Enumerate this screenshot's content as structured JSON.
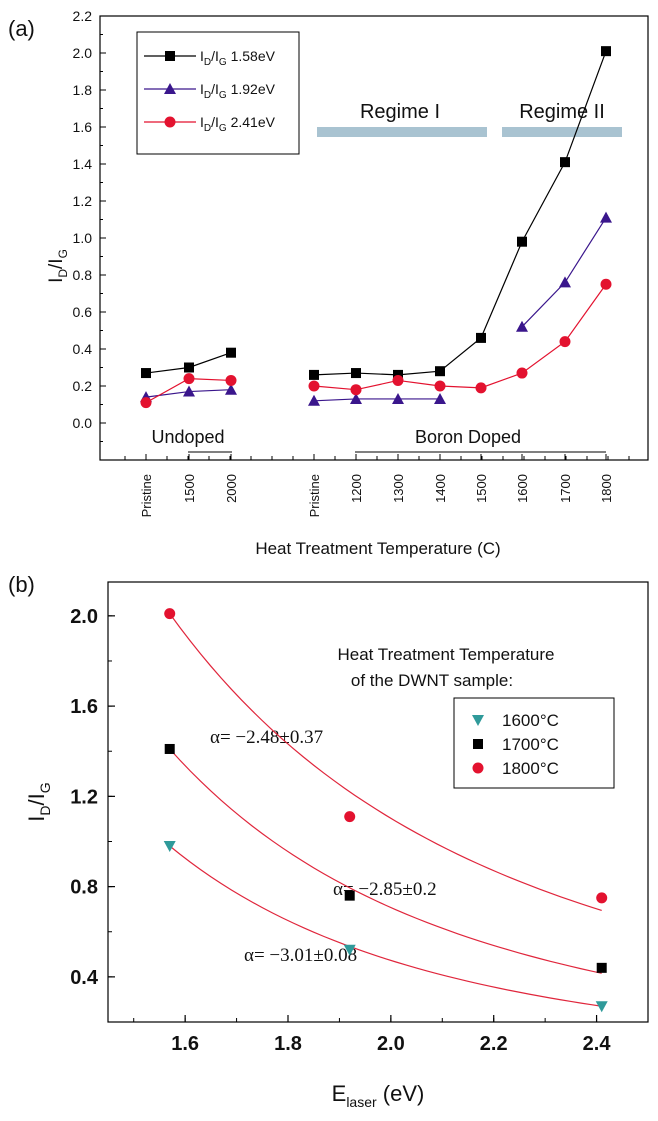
{
  "colors": {
    "s158": "#000000",
    "s192": "#3a168c",
    "s241": "#e3122f",
    "fit": "#e0263c",
    "regime": "#a9c3d1",
    "teal": "#2f9a9a"
  },
  "panel_a": {
    "label": "(a)",
    "ylabel_main": "I",
    "ylabel_sub1": "D",
    "ylabel_mid": "/I",
    "ylabel_sub2": "G",
    "xlabel": "Heat Treatment Temperature (C)",
    "regime1": "Regime I",
    "regime2": "Regime II",
    "undoped": "Undoped",
    "boron": "Boron Doped",
    "legend": [
      {
        "pre": "I",
        "sub1": "D",
        "mid": "/I",
        "sub2": "G",
        "post": " 1.58eV"
      },
      {
        "pre": "I",
        "sub1": "D",
        "mid": "/I",
        "sub2": "G",
        "post": " 1.92eV"
      },
      {
        "pre": "I",
        "sub1": "D",
        "mid": "/I",
        "sub2": "G",
        "post": " 2.41eV"
      }
    ]
  },
  "panel_b": {
    "label": "(b)",
    "ylabel_main": "I",
    "ylabel_sub1": "D",
    "ylabel_mid": "/I",
    "ylabel_sub2": "G",
    "xlabel_main": "E",
    "xlabel_sub": "laser",
    "xlabel_post": " (eV)",
    "note_line1": "Heat Treatment Temperature",
    "note_line2": "of the DWNT sample:",
    "legend": [
      "1600°C",
      "1700°C",
      "1800°C"
    ],
    "alpha_1800": "α= −2.48±0.37",
    "alpha_1700": "α= −2.85±0.2",
    "alpha_1600": "α= −3.01±0.08"
  },
  "chart_data": [
    {
      "type": "line",
      "title": "",
      "xlabel": "Heat Treatment Temperature (C)",
      "ylabel": "ID/IG",
      "ylim": [
        -0.2,
        2.2
      ],
      "yticks": [
        "0.0",
        "0.2",
        "0.4",
        "0.6",
        "0.8",
        "1.0",
        "1.2",
        "1.4",
        "1.6",
        "1.8",
        "2.0",
        "2.2"
      ],
      "categories": [
        "Pristine",
        "1500",
        "2000",
        "Pristine",
        "1200",
        "1300",
        "1400",
        "1500",
        "1600",
        "1700",
        "1800"
      ],
      "series": [
        {
          "name": "ID/IG 1.58eV",
          "values": [
            0.27,
            0.3,
            0.38,
            0.26,
            0.27,
            0.26,
            0.28,
            0.46,
            0.98,
            1.41,
            2.01
          ]
        },
        {
          "name": "ID/IG 1.92eV",
          "values": [
            0.14,
            0.17,
            0.18,
            0.12,
            0.13,
            0.13,
            0.13,
            null,
            0.52,
            0.76,
            1.11
          ]
        },
        {
          "name": "ID/IG 2.41eV",
          "values": [
            0.11,
            0.24,
            0.23,
            0.2,
            0.18,
            0.23,
            0.2,
            0.19,
            0.27,
            0.44,
            0.75
          ]
        }
      ],
      "legend_position": "top-left",
      "grid": false
    },
    {
      "type": "scatter",
      "title": "",
      "xlabel": "Elaser (eV)",
      "ylabel": "ID/IG",
      "xlim": [
        1.45,
        2.5
      ],
      "ylim": [
        0.2,
        2.15
      ],
      "xticks": [
        "1.6",
        "1.8",
        "2.0",
        "2.2",
        "2.4"
      ],
      "yticks": [
        "0.4",
        "0.8",
        "1.2",
        "1.6",
        "2.0"
      ],
      "series": [
        {
          "name": "1600°C",
          "x": [
            1.57,
            1.92,
            2.41
          ],
          "y": [
            0.98,
            0.52,
            0.27
          ],
          "fit_alpha": -3.01
        },
        {
          "name": "1700°C",
          "x": [
            1.57,
            1.92,
            2.41
          ],
          "y": [
            1.41,
            0.76,
            0.44
          ],
          "fit_alpha": -2.85
        },
        {
          "name": "1800°C",
          "x": [
            1.57,
            1.92,
            2.41
          ],
          "y": [
            2.01,
            1.11,
            0.75
          ],
          "fit_alpha": -2.48
        }
      ],
      "legend_position": "top-right",
      "grid": false
    }
  ]
}
